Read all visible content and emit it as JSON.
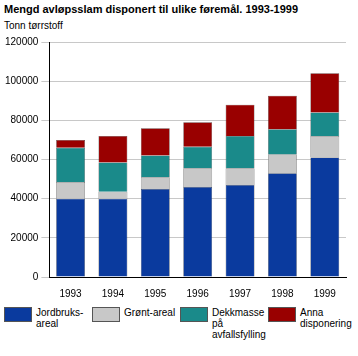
{
  "chart_data": {
    "type": "bar",
    "title": "Mengd avløpsslam disponert til ulike føremål. 1993-1999",
    "y_label": "Tonn tørrstoff",
    "categories": [
      "1993",
      "1994",
      "1995",
      "1996",
      "1997",
      "1998",
      "1999"
    ],
    "series": [
      {
        "name": "Jordbruks-areal",
        "color": "#0a3a9e",
        "values": [
          40000,
          40000,
          45000,
          46000,
          47000,
          53000,
          61000
        ]
      },
      {
        "name": "Grønt-areal",
        "color": "#c8c8c8",
        "values": [
          8500,
          3500,
          6000,
          9500,
          8500,
          9500,
          11000
        ]
      },
      {
        "name": "Dekkmasse på avfallsfylling",
        "color": "#1a8a8a",
        "values": [
          17500,
          15000,
          11000,
          11000,
          16500,
          13000,
          12000
        ]
      },
      {
        "name": "Anna disponering",
        "color": "#990000",
        "values": [
          4000,
          13500,
          14000,
          12500,
          16000,
          17000,
          20000
        ]
      }
    ],
    "stacked": true,
    "grid": true,
    "legend": "bottom",
    "ylim": [
      0,
      120000
    ],
    "yticks": [
      0,
      20000,
      40000,
      60000,
      80000,
      100000,
      120000
    ]
  }
}
